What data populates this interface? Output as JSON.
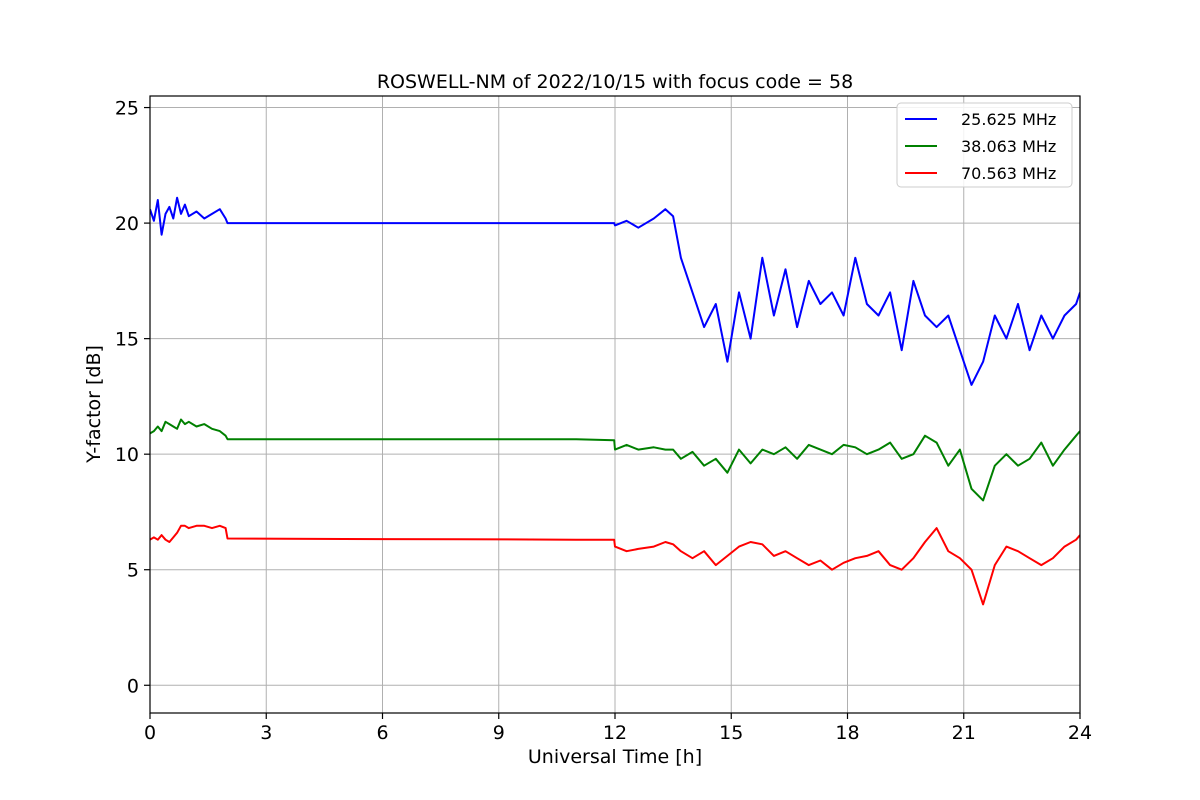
{
  "chart_data": {
    "type": "line",
    "title": "ROSWELL-NM of 2022/10/15 with focus code = 58",
    "xlabel": "Universal Time [h]",
    "ylabel": "Y-factor [dB]",
    "xlim": [
      0,
      24
    ],
    "ylim": [
      -1.2,
      25.5
    ],
    "xticks": [
      0,
      3,
      6,
      9,
      12,
      15,
      18,
      21,
      24
    ],
    "yticks": [
      0,
      5,
      10,
      15,
      20,
      25
    ],
    "grid": true,
    "legend_position": "top-right",
    "series": [
      {
        "name": "25.625 MHz",
        "color": "#0000ff",
        "x": [
          0.0,
          0.1,
          0.2,
          0.3,
          0.4,
          0.5,
          0.6,
          0.7,
          0.8,
          0.9,
          1.0,
          1.2,
          1.4,
          1.6,
          1.8,
          1.95,
          2.0,
          5.0,
          8.0,
          11.0,
          11.98,
          12.0,
          12.3,
          12.6,
          13.0,
          13.3,
          13.5,
          13.7,
          14.0,
          14.3,
          14.6,
          14.9,
          15.2,
          15.5,
          15.8,
          16.1,
          16.4,
          16.7,
          17.0,
          17.3,
          17.6,
          17.9,
          18.2,
          18.5,
          18.8,
          19.1,
          19.4,
          19.7,
          20.0,
          20.3,
          20.6,
          20.9,
          21.2,
          21.5,
          21.8,
          22.1,
          22.4,
          22.7,
          23.0,
          23.3,
          23.6,
          23.9,
          24.0
        ],
        "y": [
          20.6,
          20.1,
          21.0,
          19.5,
          20.4,
          20.7,
          20.2,
          21.1,
          20.4,
          20.8,
          20.3,
          20.5,
          20.2,
          20.4,
          20.6,
          20.2,
          20.0,
          20.0,
          20.0,
          20.0,
          20.0,
          19.9,
          20.1,
          19.8,
          20.2,
          20.6,
          20.3,
          18.5,
          17.0,
          15.5,
          16.5,
          14.0,
          17.0,
          15.0,
          18.5,
          16.0,
          18.0,
          15.5,
          17.5,
          16.5,
          17.0,
          16.0,
          18.5,
          16.5,
          16.0,
          17.0,
          14.5,
          17.5,
          16.0,
          15.5,
          16.0,
          14.5,
          13.0,
          14.0,
          16.0,
          15.0,
          16.5,
          14.5,
          16.0,
          15.0,
          16.0,
          16.5,
          17.0
        ]
      },
      {
        "name": "38.063 MHz",
        "color": "#008000",
        "x": [
          0.0,
          0.1,
          0.2,
          0.3,
          0.4,
          0.5,
          0.6,
          0.7,
          0.8,
          0.9,
          1.0,
          1.2,
          1.4,
          1.6,
          1.8,
          1.95,
          2.0,
          5.0,
          8.0,
          11.0,
          11.98,
          12.0,
          12.3,
          12.6,
          13.0,
          13.3,
          13.5,
          13.7,
          14.0,
          14.3,
          14.6,
          14.9,
          15.2,
          15.5,
          15.8,
          16.1,
          16.4,
          16.7,
          17.0,
          17.3,
          17.6,
          17.9,
          18.2,
          18.5,
          18.8,
          19.1,
          19.4,
          19.7,
          20.0,
          20.3,
          20.6,
          20.9,
          21.2,
          21.5,
          21.8,
          22.1,
          22.4,
          22.7,
          23.0,
          23.3,
          23.6,
          23.9,
          24.0
        ],
        "y": [
          10.9,
          11.0,
          11.2,
          11.0,
          11.4,
          11.3,
          11.2,
          11.1,
          11.5,
          11.3,
          11.4,
          11.2,
          11.3,
          11.1,
          11.0,
          10.8,
          10.65,
          10.65,
          10.65,
          10.65,
          10.6,
          10.2,
          10.4,
          10.2,
          10.3,
          10.2,
          10.2,
          9.8,
          10.1,
          9.5,
          9.8,
          9.2,
          10.2,
          9.6,
          10.2,
          10.0,
          10.3,
          9.8,
          10.4,
          10.2,
          10.0,
          10.4,
          10.3,
          10.0,
          10.2,
          10.5,
          9.8,
          10.0,
          10.8,
          10.5,
          9.5,
          10.2,
          8.5,
          8.0,
          9.5,
          10.0,
          9.5,
          9.8,
          10.5,
          9.5,
          10.2,
          10.8,
          11.0
        ]
      },
      {
        "name": "70.563 MHz",
        "color": "#ff0000",
        "x": [
          0.0,
          0.1,
          0.2,
          0.3,
          0.4,
          0.5,
          0.6,
          0.7,
          0.8,
          0.9,
          1.0,
          1.2,
          1.4,
          1.6,
          1.8,
          1.95,
          2.0,
          5.0,
          8.0,
          11.0,
          11.98,
          12.0,
          12.3,
          12.6,
          13.0,
          13.3,
          13.5,
          13.7,
          14.0,
          14.3,
          14.6,
          14.9,
          15.2,
          15.5,
          15.8,
          16.1,
          16.4,
          16.7,
          17.0,
          17.3,
          17.6,
          17.9,
          18.2,
          18.5,
          18.8,
          19.1,
          19.4,
          19.7,
          20.0,
          20.3,
          20.6,
          20.9,
          21.2,
          21.5,
          21.8,
          22.1,
          22.4,
          22.7,
          23.0,
          23.3,
          23.6,
          23.9,
          24.0
        ],
        "y": [
          6.3,
          6.4,
          6.3,
          6.5,
          6.3,
          6.2,
          6.4,
          6.6,
          6.9,
          6.9,
          6.8,
          6.9,
          6.9,
          6.8,
          6.9,
          6.8,
          6.35,
          6.33,
          6.32,
          6.3,
          6.3,
          6.0,
          5.8,
          5.9,
          6.0,
          6.2,
          6.1,
          5.8,
          5.5,
          5.8,
          5.2,
          5.6,
          6.0,
          6.2,
          6.1,
          5.6,
          5.8,
          5.5,
          5.2,
          5.4,
          5.0,
          5.3,
          5.5,
          5.6,
          5.8,
          5.2,
          5.0,
          5.5,
          6.2,
          6.8,
          5.8,
          5.5,
          5.0,
          3.5,
          5.2,
          6.0,
          5.8,
          5.5,
          5.2,
          5.5,
          6.0,
          6.3,
          6.5
        ]
      }
    ]
  }
}
